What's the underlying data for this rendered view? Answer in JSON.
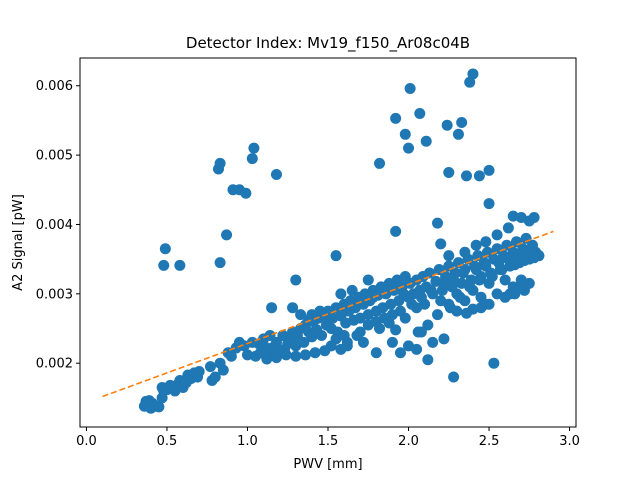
{
  "chart_data": {
    "type": "scatter",
    "title": "Detector Index: Mv19_f150_Ar08c04B",
    "xlabel": "PWV [mm]",
    "ylabel": "A2 Signal [pW]",
    "xlim": [
      -0.04,
      3.04
    ],
    "ylim": [
      0.00108,
      0.0064
    ],
    "x_ticks": [
      0.0,
      0.5,
      1.0,
      1.5,
      2.0,
      2.5,
      3.0
    ],
    "x_tick_labels": [
      "0.0",
      "0.5",
      "1.0",
      "1.5",
      "2.0",
      "2.5",
      "3.0"
    ],
    "y_ticks": [
      0.002,
      0.003,
      0.004,
      0.005,
      0.006
    ],
    "y_tick_labels": [
      "0.002",
      "0.003",
      "0.004",
      "0.005",
      "0.006"
    ],
    "grid": false,
    "colors": {
      "points": "#1f77b4",
      "fit": "#ff7f0e"
    },
    "series": [
      {
        "name": "measurements",
        "kind": "scatter",
        "points": [
          [
            0.36,
            0.00138
          ],
          [
            0.37,
            0.00145
          ],
          [
            0.38,
            0.0014
          ],
          [
            0.39,
            0.00146
          ],
          [
            0.4,
            0.00135
          ],
          [
            0.41,
            0.00142
          ],
          [
            0.43,
            0.00138
          ],
          [
            0.45,
            0.00137
          ],
          [
            0.47,
            0.0015
          ],
          [
            0.48,
            0.0016
          ],
          [
            0.47,
            0.00165
          ],
          [
            0.5,
            0.00162
          ],
          [
            0.52,
            0.00168
          ],
          [
            0.55,
            0.0016
          ],
          [
            0.57,
            0.0017
          ],
          [
            0.58,
            0.00175
          ],
          [
            0.6,
            0.00165
          ],
          [
            0.62,
            0.00172
          ],
          [
            0.63,
            0.00183
          ],
          [
            0.65,
            0.00178
          ],
          [
            0.67,
            0.00186
          ],
          [
            0.69,
            0.0018
          ],
          [
            0.7,
            0.00188
          ],
          [
            0.77,
            0.00195
          ],
          [
            0.78,
            0.00175
          ],
          [
            0.8,
            0.0018
          ],
          [
            0.83,
            0.002
          ],
          [
            0.85,
            0.0019
          ],
          [
            0.88,
            0.00215
          ],
          [
            0.9,
            0.0021
          ],
          [
            0.93,
            0.00222
          ],
          [
            0.95,
            0.0023
          ],
          [
            0.98,
            0.00225
          ],
          [
            1.0,
            0.00212
          ],
          [
            1.03,
            0.0023
          ],
          [
            1.05,
            0.0021
          ],
          [
            1.07,
            0.00228
          ],
          [
            1.08,
            0.00215
          ],
          [
            1.1,
            0.00235
          ],
          [
            1.12,
            0.00222
          ],
          [
            1.14,
            0.0024
          ],
          [
            1.15,
            0.00215
          ],
          [
            1.17,
            0.00225
          ],
          [
            1.18,
            0.0023
          ],
          [
            1.2,
            0.00218
          ],
          [
            1.22,
            0.0024
          ],
          [
            1.23,
            0.0022
          ],
          [
            1.25,
            0.00228
          ],
          [
            1.27,
            0.00235
          ],
          [
            1.28,
            0.00245
          ],
          [
            1.3,
            0.00225
          ],
          [
            1.31,
            0.0024
          ],
          [
            1.33,
            0.0025
          ],
          [
            1.35,
            0.0023
          ],
          [
            1.36,
            0.00255
          ],
          [
            1.38,
            0.00245
          ],
          [
            1.4,
            0.00238
          ],
          [
            1.41,
            0.0026
          ],
          [
            1.43,
            0.00248
          ],
          [
            1.44,
            0.00265
          ],
          [
            1.46,
            0.0024
          ],
          [
            1.47,
            0.0027
          ],
          [
            1.49,
            0.00255
          ],
          [
            1.5,
            0.00275
          ],
          [
            1.52,
            0.0025
          ],
          [
            1.53,
            0.00265
          ],
          [
            1.55,
            0.0028
          ],
          [
            1.56,
            0.00245
          ],
          [
            1.58,
            0.00268
          ],
          [
            1.6,
            0.00285
          ],
          [
            1.61,
            0.00258
          ],
          [
            1.63,
            0.00275
          ],
          [
            1.64,
            0.0029
          ],
          [
            1.66,
            0.00262
          ],
          [
            1.67,
            0.0028
          ],
          [
            1.69,
            0.00295
          ],
          [
            1.7,
            0.00265
          ],
          [
            1.72,
            0.00285
          ],
          [
            1.73,
            0.003
          ],
          [
            1.75,
            0.0027
          ],
          [
            1.76,
            0.0029
          ],
          [
            1.78,
            0.00305
          ],
          [
            1.8,
            0.00275
          ],
          [
            1.81,
            0.00298
          ],
          [
            1.83,
            0.0031
          ],
          [
            1.84,
            0.0028
          ],
          [
            1.86,
            0.003
          ],
          [
            1.88,
            0.00315
          ],
          [
            1.89,
            0.00285
          ],
          [
            1.91,
            0.00305
          ],
          [
            1.93,
            0.0032
          ],
          [
            1.94,
            0.0029
          ],
          [
            1.96,
            0.0031
          ],
          [
            1.98,
            0.00325
          ],
          [
            2.0,
            0.00295
          ],
          [
            2.01,
            0.00315
          ],
          [
            2.03,
            0.003
          ],
          [
            2.05,
            0.0032
          ],
          [
            2.07,
            0.00305
          ],
          [
            2.09,
            0.00325
          ],
          [
            2.11,
            0.0031
          ],
          [
            2.13,
            0.0033
          ],
          [
            2.15,
            0.003
          ],
          [
            2.17,
            0.00318
          ],
          [
            2.19,
            0.00335
          ],
          [
            2.21,
            0.00305
          ],
          [
            2.23,
            0.00325
          ],
          [
            2.25,
            0.0034
          ],
          [
            2.27,
            0.0031
          ],
          [
            2.29,
            0.0033
          ],
          [
            2.31,
            0.00345
          ],
          [
            2.33,
            0.00315
          ],
          [
            2.35,
            0.00335
          ],
          [
            2.37,
            0.0035
          ],
          [
            2.39,
            0.0032
          ],
          [
            2.41,
            0.0034
          ],
          [
            2.43,
            0.00355
          ],
          [
            2.45,
            0.00325
          ],
          [
            2.47,
            0.00345
          ],
          [
            2.49,
            0.0036
          ],
          [
            2.51,
            0.0033
          ],
          [
            2.53,
            0.0035
          ],
          [
            2.55,
            0.00365
          ],
          [
            2.57,
            0.00335
          ],
          [
            2.59,
            0.00355
          ],
          [
            2.61,
            0.0037
          ],
          [
            2.63,
            0.0034
          ],
          [
            2.65,
            0.0036
          ],
          [
            2.67,
            0.00375
          ],
          [
            2.69,
            0.00345
          ],
          [
            2.71,
            0.00365
          ],
          [
            2.73,
            0.0038
          ],
          [
            2.75,
            0.0035
          ],
          [
            2.77,
            0.0037
          ],
          [
            2.79,
            0.0036
          ],
          [
            2.81,
            0.00355
          ],
          [
            1.55,
            0.00235
          ],
          [
            1.6,
            0.0024
          ],
          [
            1.7,
            0.00245
          ],
          [
            1.75,
            0.00255
          ],
          [
            1.8,
            0.0026
          ],
          [
            1.85,
            0.00265
          ],
          [
            1.9,
            0.0027
          ],
          [
            1.95,
            0.00275
          ],
          [
            2.05,
            0.0028
          ],
          [
            2.1,
            0.00285
          ],
          [
            2.2,
            0.0029
          ],
          [
            2.3,
            0.003
          ],
          [
            2.4,
            0.00305
          ],
          [
            2.5,
            0.00315
          ],
          [
            2.6,
            0.0032
          ],
          [
            2.7,
            0.0032
          ],
          [
            2.65,
            0.0031
          ],
          [
            2.55,
            0.003
          ],
          [
            2.45,
            0.00295
          ],
          [
            2.35,
            0.0029
          ],
          [
            1.5,
            0.00265
          ],
          [
            1.58,
            0.00275
          ],
          [
            1.65,
            0.00285
          ],
          [
            1.72,
            0.0029
          ],
          [
            1.78,
            0.00295
          ],
          [
            1.85,
            0.00305
          ],
          [
            1.92,
            0.0031
          ],
          [
            1.97,
            0.003
          ],
          [
            2.02,
            0.00285
          ],
          [
            2.08,
            0.00295
          ],
          [
            2.14,
            0.00305
          ],
          [
            2.22,
            0.00315
          ],
          [
            2.28,
            0.0032
          ],
          [
            2.34,
            0.0033
          ],
          [
            2.42,
            0.00335
          ],
          [
            2.48,
            0.0034
          ],
          [
            2.56,
            0.00345
          ],
          [
            2.62,
            0.0035
          ],
          [
            2.68,
            0.00355
          ],
          [
            2.74,
            0.0036
          ],
          [
            1.4,
            0.0027
          ],
          [
            1.45,
            0.00275
          ],
          [
            1.52,
            0.00225
          ],
          [
            1.62,
            0.0023
          ],
          [
            1.68,
            0.0024
          ],
          [
            1.82,
            0.0025
          ],
          [
            1.88,
            0.00258
          ],
          [
            1.98,
            0.00265
          ],
          [
            2.06,
            0.00245
          ],
          [
            2.12,
            0.00255
          ],
          [
            2.18,
            0.0027
          ],
          [
            2.26,
            0.0028
          ],
          [
            2.32,
            0.00295
          ],
          [
            2.38,
            0.0031
          ],
          [
            2.44,
            0.0032
          ],
          [
            2.52,
            0.00325
          ],
          [
            2.58,
            0.00335
          ],
          [
            2.66,
            0.00342
          ],
          [
            2.72,
            0.00348
          ],
          [
            2.78,
            0.00352
          ],
          [
            2.66,
            0.003
          ],
          [
            2.7,
            0.0031
          ],
          [
            2.72,
            0.00305
          ],
          [
            2.75,
            0.00315
          ],
          [
            2.6,
            0.00295
          ],
          [
            2.63,
            0.003
          ],
          [
            2.5,
            0.00285
          ],
          [
            2.45,
            0.0028
          ],
          [
            2.4,
            0.00278
          ],
          [
            2.36,
            0.00272
          ],
          [
            1.8,
            0.00215
          ],
          [
            1.95,
            0.00215
          ],
          [
            2.12,
            0.00205
          ],
          [
            2.53,
            0.002
          ],
          [
            2.28,
            0.0018
          ],
          [
            2.48,
            0.00285
          ],
          [
            2.25,
            0.00285
          ],
          [
            2.3,
            0.00275
          ],
          [
            1.9,
            0.0023
          ],
          [
            2.0,
            0.00225
          ],
          [
            2.05,
            0.0022
          ],
          [
            2.15,
            0.0023
          ],
          [
            2.22,
            0.00235
          ],
          [
            2.08,
            0.00245
          ],
          [
            1.92,
            0.00248
          ],
          [
            1.72,
            0.0023
          ],
          [
            1.62,
            0.00225
          ],
          [
            1.58,
            0.0022
          ],
          [
            1.48,
            0.00218
          ],
          [
            1.42,
            0.00215
          ],
          [
            1.36,
            0.00212
          ],
          [
            1.3,
            0.0021
          ],
          [
            1.24,
            0.00212
          ],
          [
            1.18,
            0.00208
          ],
          [
            1.12,
            0.00206
          ],
          [
            1.28,
            0.0028
          ],
          [
            1.33,
            0.0027
          ],
          [
            1.38,
            0.00262
          ],
          [
            1.58,
            0.003
          ],
          [
            1.65,
            0.00305
          ],
          [
            1.75,
            0.0032
          ],
          [
            1.55,
            0.00355
          ],
          [
            1.92,
            0.0039
          ],
          [
            2.18,
            0.00402
          ],
          [
            2.2,
            0.00372
          ],
          [
            2.25,
            0.00355
          ],
          [
            2.35,
            0.0036
          ],
          [
            2.42,
            0.0037
          ],
          [
            2.48,
            0.00375
          ],
          [
            2.55,
            0.00385
          ],
          [
            2.62,
            0.00395
          ],
          [
            2.65,
            0.00412
          ],
          [
            2.7,
            0.0041
          ],
          [
            2.75,
            0.00405
          ],
          [
            2.78,
            0.0041
          ],
          [
            2.5,
            0.0043
          ],
          [
            0.48,
            0.00341
          ],
          [
            0.49,
            0.00365
          ],
          [
            0.58,
            0.00341
          ],
          [
            0.83,
            0.00345
          ],
          [
            0.87,
            0.00385
          ],
          [
            0.82,
            0.0048
          ],
          [
            0.83,
            0.00488
          ],
          [
            0.91,
            0.0045
          ],
          [
            0.95,
            0.0045
          ],
          [
            0.99,
            0.00445
          ],
          [
            1.03,
            0.00495
          ],
          [
            1.04,
            0.0051
          ],
          [
            1.18,
            0.00472
          ],
          [
            1.15,
            0.0028
          ],
          [
            1.3,
            0.0032
          ],
          [
            1.82,
            0.00488
          ],
          [
            1.92,
            0.00553
          ],
          [
            1.98,
            0.0053
          ],
          [
            2.0,
            0.0051
          ],
          [
            2.01,
            0.00596
          ],
          [
            2.07,
            0.0056
          ],
          [
            2.11,
            0.0052
          ],
          [
            2.24,
            0.00543
          ],
          [
            2.25,
            0.00475
          ],
          [
            2.31,
            0.0053
          ],
          [
            2.33,
            0.00547
          ],
          [
            2.36,
            0.0047
          ],
          [
            2.38,
            0.00605
          ],
          [
            2.4,
            0.00617
          ],
          [
            2.44,
            0.0047
          ],
          [
            2.5,
            0.00478
          ]
        ]
      },
      {
        "name": "linear fit",
        "kind": "dashed-line",
        "x": [
          0.1,
          2.9
        ],
        "y": [
          0.00152,
          0.0039
        ]
      }
    ]
  }
}
